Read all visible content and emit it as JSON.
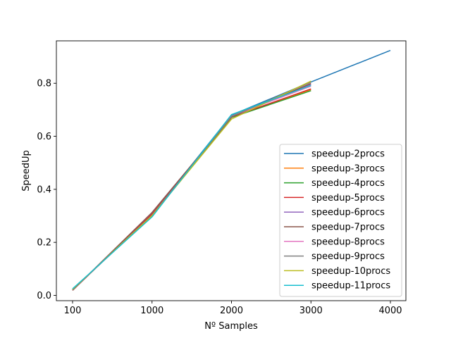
{
  "chart_data": {
    "type": "line",
    "title": "",
    "xlabel": "Nº Samples",
    "ylabel": "SpeedUp",
    "x_ticks": [
      "100",
      "1000",
      "2000",
      "3000",
      "4000"
    ],
    "y_ticks": [
      0.0,
      0.2,
      0.4,
      0.6,
      0.8
    ],
    "y_tick_labels": [
      "0.0",
      "0.2",
      "0.4",
      "0.6",
      "0.8"
    ],
    "ylim": [
      -0.02,
      0.96
    ],
    "grid": false,
    "legend_position": "lower-right",
    "series": [
      {
        "name": "speedup-2procs",
        "color": "#1f77b4",
        "values": [
          0.02,
          0.305,
          0.68,
          0.805,
          0.924
        ]
      },
      {
        "name": "speedup-3procs",
        "color": "#ff7f0e",
        "values": [
          0.02,
          0.306,
          0.672,
          0.776
        ]
      },
      {
        "name": "speedup-4procs",
        "color": "#2ca02c",
        "values": [
          0.021,
          0.304,
          0.671,
          0.772
        ]
      },
      {
        "name": "speedup-5procs",
        "color": "#d62728",
        "values": [
          0.019,
          0.307,
          0.673,
          0.779
        ]
      },
      {
        "name": "speedup-6procs",
        "color": "#9467bd",
        "values": [
          0.02,
          0.312,
          0.673,
          0.796
        ]
      },
      {
        "name": "speedup-7procs",
        "color": "#8c564b",
        "values": [
          0.019,
          0.313,
          0.672,
          0.799
        ]
      },
      {
        "name": "speedup-8procs",
        "color": "#e377c2",
        "values": [
          0.022,
          0.3,
          0.676,
          0.789
        ]
      },
      {
        "name": "speedup-9procs",
        "color": "#7f7f7f",
        "values": [
          0.021,
          0.302,
          0.675,
          0.804
        ]
      },
      {
        "name": "speedup-10procs",
        "color": "#bcbd22",
        "values": [
          0.023,
          0.301,
          0.665,
          0.808
        ]
      },
      {
        "name": "speedup-11procs",
        "color": "#17becf",
        "values": [
          0.025,
          0.296,
          0.682,
          0.792
        ]
      }
    ]
  }
}
